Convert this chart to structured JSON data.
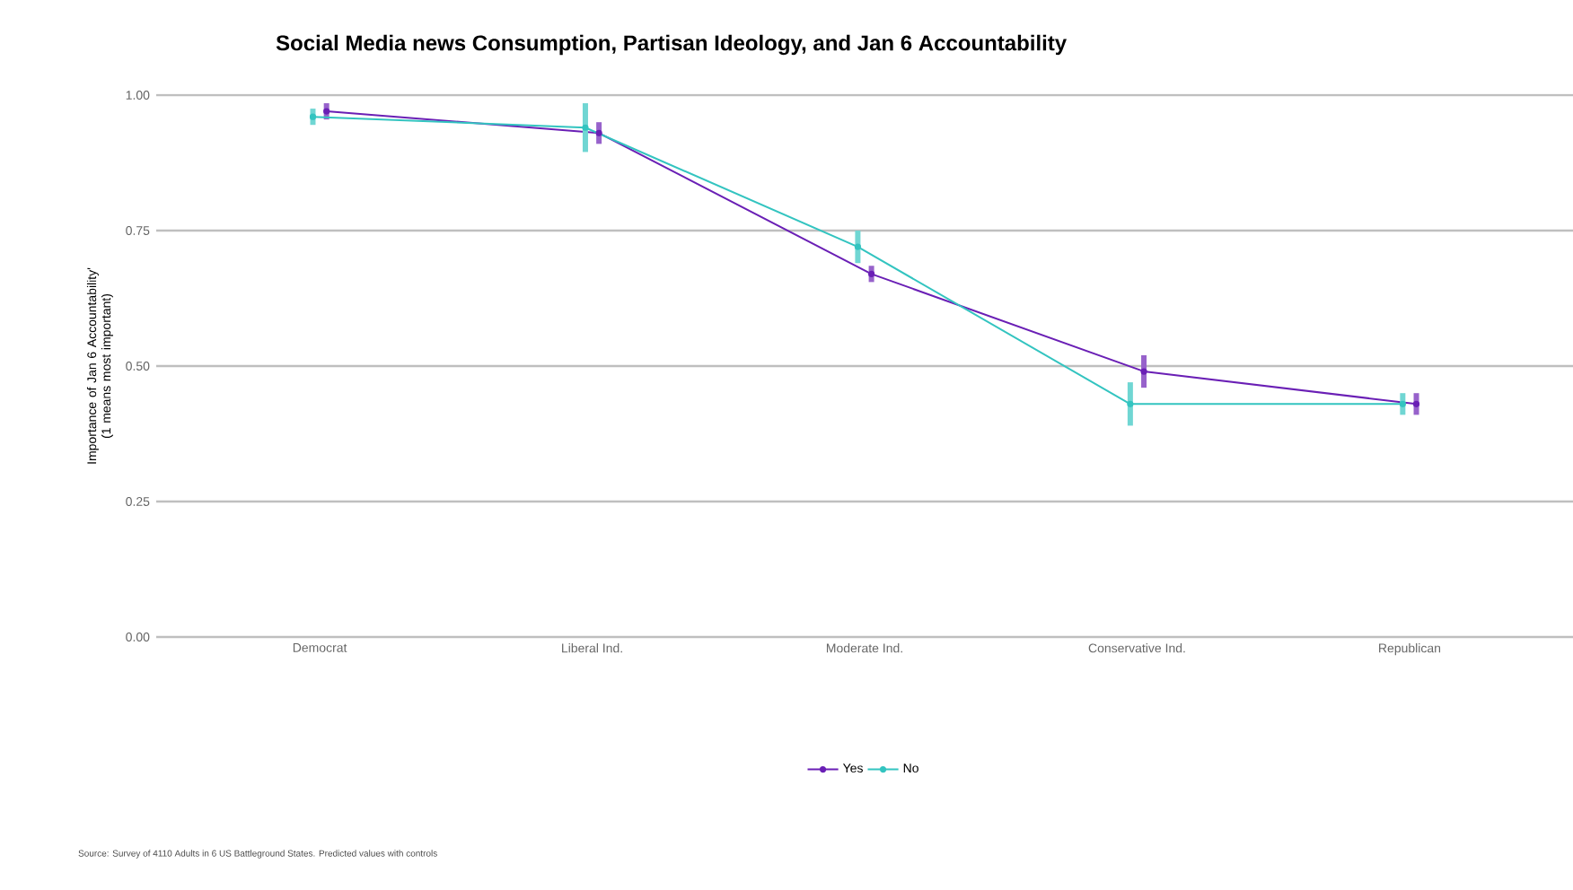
{
  "chart_data": {
    "type": "line",
    "title": "Social Media news Consumption, Partisan Ideology, and Jan 6 Accountability",
    "ylabel": "Importance of Jan 6 Accountability' (1 means most important)",
    "categories": [
      "Democrat",
      "Liberal Ind.",
      "Moderate Ind.",
      "Conservative Ind.",
      "Republican"
    ],
    "series": [
      {
        "name": "Yes",
        "color": "#6a1fb5",
        "values": [
          0.97,
          0.93,
          0.67,
          0.49,
          0.43
        ],
        "errors": [
          0.015,
          0.02,
          0.015,
          0.03,
          0.02
        ]
      },
      {
        "name": "No",
        "color": "#33c4c0",
        "values": [
          0.96,
          0.94,
          0.72,
          0.43,
          0.43
        ],
        "errors": [
          0.015,
          0.045,
          0.03,
          0.04,
          0.02
        ]
      }
    ],
    "ylim": [
      0,
      1
    ],
    "yticks": [
      {
        "value": 0,
        "label": "0.00"
      },
      {
        "value": 0.25,
        "label": "0.25"
      },
      {
        "value": 0.5,
        "label": "0.50"
      },
      {
        "value": 0.75,
        "label": "0.75"
      },
      {
        "value": 1,
        "label": "1.00"
      }
    ],
    "grid": "y",
    "legend": "bottom",
    "marker": "circle",
    "line_style": "solid",
    "annotations": [
      "Source: Survey of 4110 Adults in 6 US Battleground States. Predicted values with controls"
    ]
  }
}
